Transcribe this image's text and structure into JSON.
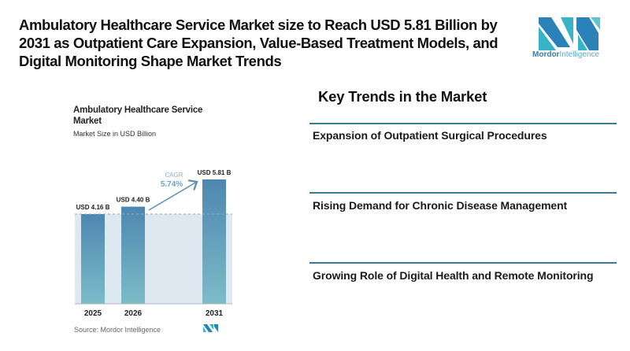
{
  "headline": "Ambulatory Healthcare Service Market size to Reach USD 5.81 Billion by 2031 as Outpatient Care Expansion, Value-Based Treatment Models, and Digital Monitoring Shape Market Trends",
  "logo": {
    "brand_bold": "Mordor",
    "brand_light": "Intelligence",
    "icon": "mordor-intelligence-logo-icon"
  },
  "colors": {
    "bar_top": "#4d87b0",
    "bar_bottom": "#7cbcc8",
    "band_fill": "#dde8f0",
    "accent": "#3b7a96",
    "cagr_text": "#6fa3c4"
  },
  "chart_data": {
    "type": "bar",
    "title": "Ambulatory Healthcare Service Market",
    "subtitle": "Market Size in USD Billion",
    "categories": [
      "2025",
      "2026",
      "2031"
    ],
    "values": [
      4.16,
      4.4,
      5.81
    ],
    "data_labels": [
      "USD 4.16 B",
      "USD 4.40 B",
      "USD 5.81 B"
    ],
    "unit": "USD Billion",
    "annotation": {
      "label": "CAGR",
      "value": "5.74%",
      "from": "2026",
      "to": "2031"
    },
    "reference_line": {
      "value": 4.16,
      "style": "dashed"
    },
    "xlabel": "",
    "ylabel": "",
    "grid": false,
    "source": "Source: Mordor Intelligence"
  },
  "trends": {
    "title": "Key Trends in the Market",
    "items": [
      "Expansion of Outpatient Surgical Procedures",
      "Rising Demand for Chronic Disease Management",
      "Growing Role of Digital Health and Remote Monitoring"
    ]
  }
}
